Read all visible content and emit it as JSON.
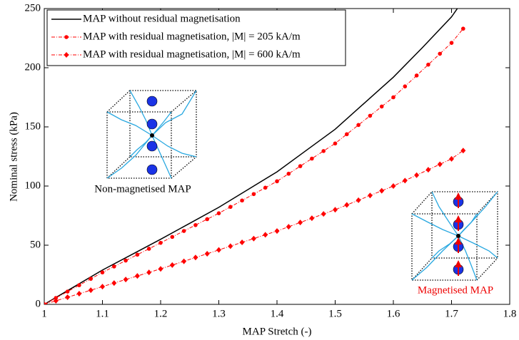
{
  "chart_data": {
    "type": "line",
    "xlabel": "MAP Stretch (-)",
    "ylabel": "Nominal stress (kPa)",
    "xlim": [
      1,
      1.8
    ],
    "xticks": [
      1,
      1.1,
      1.2,
      1.3,
      1.4,
      1.5,
      1.6,
      1.7,
      1.8
    ],
    "ylim": [
      0,
      250
    ],
    "yticks": [
      0,
      50,
      100,
      150,
      200,
      250
    ],
    "grid": false,
    "legend": "upper left",
    "annotations": [
      "Non-magnetised MAP",
      "Magnetised MAP"
    ],
    "series": [
      {
        "name": "MAP without residual magnetisation",
        "color": "#000000",
        "marker": "none",
        "x": [
          1,
          1.05,
          1.1,
          1.15,
          1.2,
          1.25,
          1.3,
          1.35,
          1.4,
          1.45,
          1.5,
          1.55,
          1.6,
          1.65,
          1.7,
          1.71
        ],
        "values": [
          0,
          14.5,
          29,
          42,
          55,
          68.5,
          82,
          97,
          112,
          130,
          148,
          170,
          192,
          217,
          243,
          250
        ]
      },
      {
        "name": "MAP with residual magnetisation, |M| = 205 kA/m",
        "color": "#ff0000",
        "marker": "circle",
        "x": [
          1,
          1.02,
          1.04,
          1.06,
          1.08,
          1.1,
          1.12,
          1.14,
          1.16,
          1.18,
          1.2,
          1.22,
          1.24,
          1.26,
          1.28,
          1.3,
          1.32,
          1.34,
          1.36,
          1.38,
          1.4,
          1.42,
          1.44,
          1.46,
          1.48,
          1.5,
          1.52,
          1.54,
          1.56,
          1.58,
          1.6,
          1.62,
          1.64,
          1.66,
          1.68,
          1.7,
          1.72
        ],
        "values": [
          0,
          5.4,
          10.8,
          16.2,
          21.6,
          27,
          32,
          37,
          42,
          47,
          52,
          57,
          62,
          67,
          72,
          77,
          82.4,
          87.8,
          93.2,
          98.6,
          104,
          110.4,
          116.8,
          123.2,
          129.6,
          136,
          143.8,
          151.6,
          159.4,
          167.2,
          175,
          184.2,
          193.4,
          202.6,
          211.8,
          221,
          233
        ]
      },
      {
        "name": "MAP with residual magnetisation, |M| = 600 kA/m",
        "color": "#ff0000",
        "marker": "diamond",
        "x": [
          1,
          1.02,
          1.04,
          1.06,
          1.08,
          1.1,
          1.12,
          1.14,
          1.16,
          1.18,
          1.2,
          1.22,
          1.24,
          1.26,
          1.28,
          1.3,
          1.32,
          1.34,
          1.36,
          1.38,
          1.4,
          1.42,
          1.44,
          1.46,
          1.48,
          1.5,
          1.52,
          1.54,
          1.56,
          1.58,
          1.6,
          1.62,
          1.64,
          1.66,
          1.68,
          1.7,
          1.72
        ],
        "values": [
          0,
          3,
          6,
          9,
          12,
          15,
          18,
          21,
          24,
          27,
          30,
          33.2,
          36.4,
          39.6,
          42.8,
          46,
          49.2,
          52.4,
          55.6,
          58.8,
          62,
          65.6,
          69.2,
          72.8,
          76.4,
          80,
          84,
          88,
          92,
          96,
          100,
          104.6,
          109.2,
          113.8,
          118.4,
          123,
          130
        ]
      }
    ]
  }
}
